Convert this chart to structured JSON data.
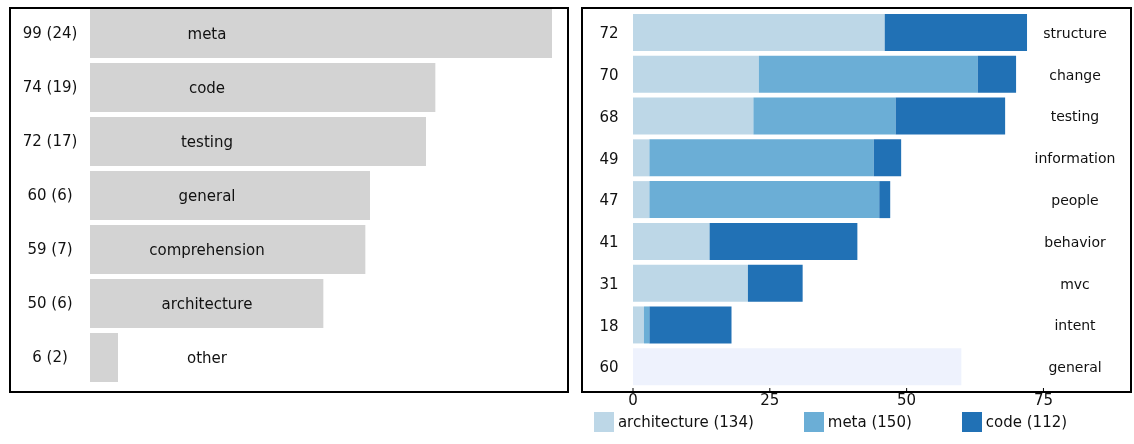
{
  "chart_data": [
    {
      "type": "bar",
      "orientation": "horizontal",
      "categories": [
        "meta",
        "code",
        "testing",
        "general",
        "comprehension",
        "architecture",
        "other"
      ],
      "values": [
        99,
        74,
        72,
        60,
        59,
        50,
        6
      ],
      "color": "#d3d3d3",
      "value_labels": [
        "99 (24)",
        "74 (19)",
        "72 (17)",
        "60 (6)",
        "59 (7)",
        "50 (6)",
        "6 (2)"
      ],
      "legend": false,
      "grid": false
    },
    {
      "type": "bar",
      "orientation": "horizontal",
      "stacked": true,
      "categories": [
        "structure",
        "change",
        "testing",
        "information",
        "people",
        "behavior",
        "mvc",
        "intent",
        "general"
      ],
      "series": [
        {
          "name": "architecture (134)",
          "color": "#bdd7e7",
          "values": [
            46,
            23,
            22,
            3,
            3,
            14,
            21,
            2,
            null
          ]
        },
        {
          "name": "meta (150)",
          "color": "#6baed6",
          "values": [
            0,
            40,
            26,
            41,
            42,
            0,
            0,
            1,
            null
          ]
        },
        {
          "name": "code (112)",
          "color": "#2171b5",
          "values": [
            26,
            7,
            20,
            5,
            2,
            27,
            10,
            15,
            null
          ]
        },
        {
          "color": "#eef2fd",
          "values": [
            null,
            null,
            null,
            null,
            null,
            null,
            null,
            null,
            60
          ]
        }
      ],
      "totals": [
        "72",
        "70",
        "68",
        "49",
        "47",
        "41",
        "31",
        "18",
        "60"
      ],
      "xlim": [
        0,
        91
      ],
      "xticks": [
        0,
        25,
        50,
        75
      ],
      "legend": "bottom",
      "grid": false
    }
  ]
}
